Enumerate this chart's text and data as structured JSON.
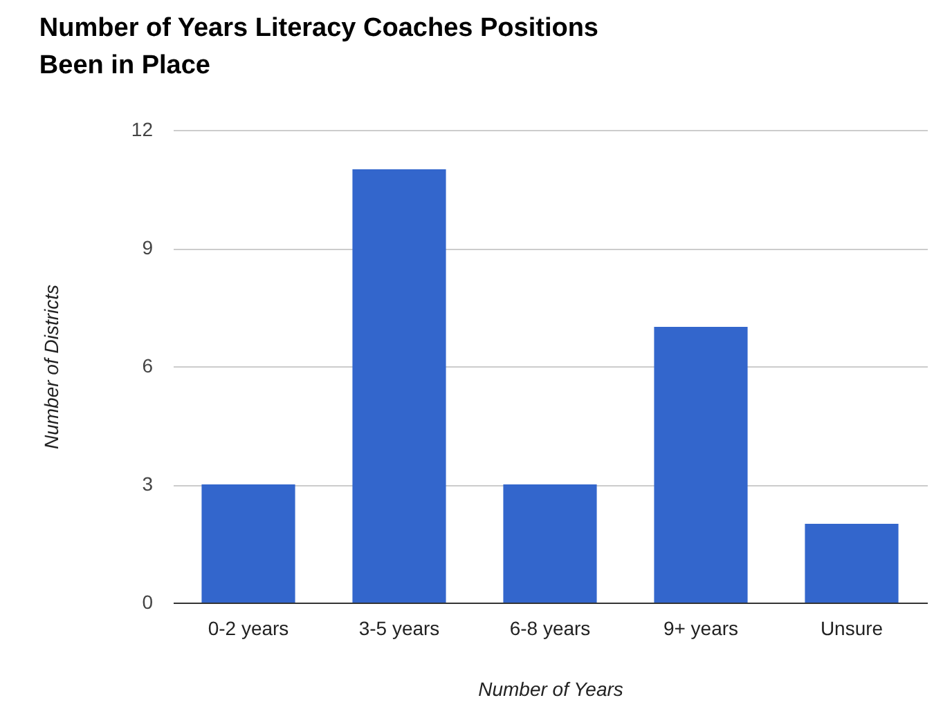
{
  "chart_data": {
    "type": "bar",
    "title": "Number of Years Literacy Coaches Positions Been in Place",
    "xlabel": "Number of Years",
    "ylabel": "Number of Districts",
    "categories": [
      "0-2 years",
      "3-5 years",
      "6-8 years",
      "9+ years",
      "Unsure"
    ],
    "values": [
      3,
      11,
      3,
      7,
      2
    ],
    "color": "#3366cc",
    "ylim": [
      0,
      12
    ],
    "yticks": [
      0,
      3,
      6,
      9,
      12
    ],
    "grid": "y"
  }
}
